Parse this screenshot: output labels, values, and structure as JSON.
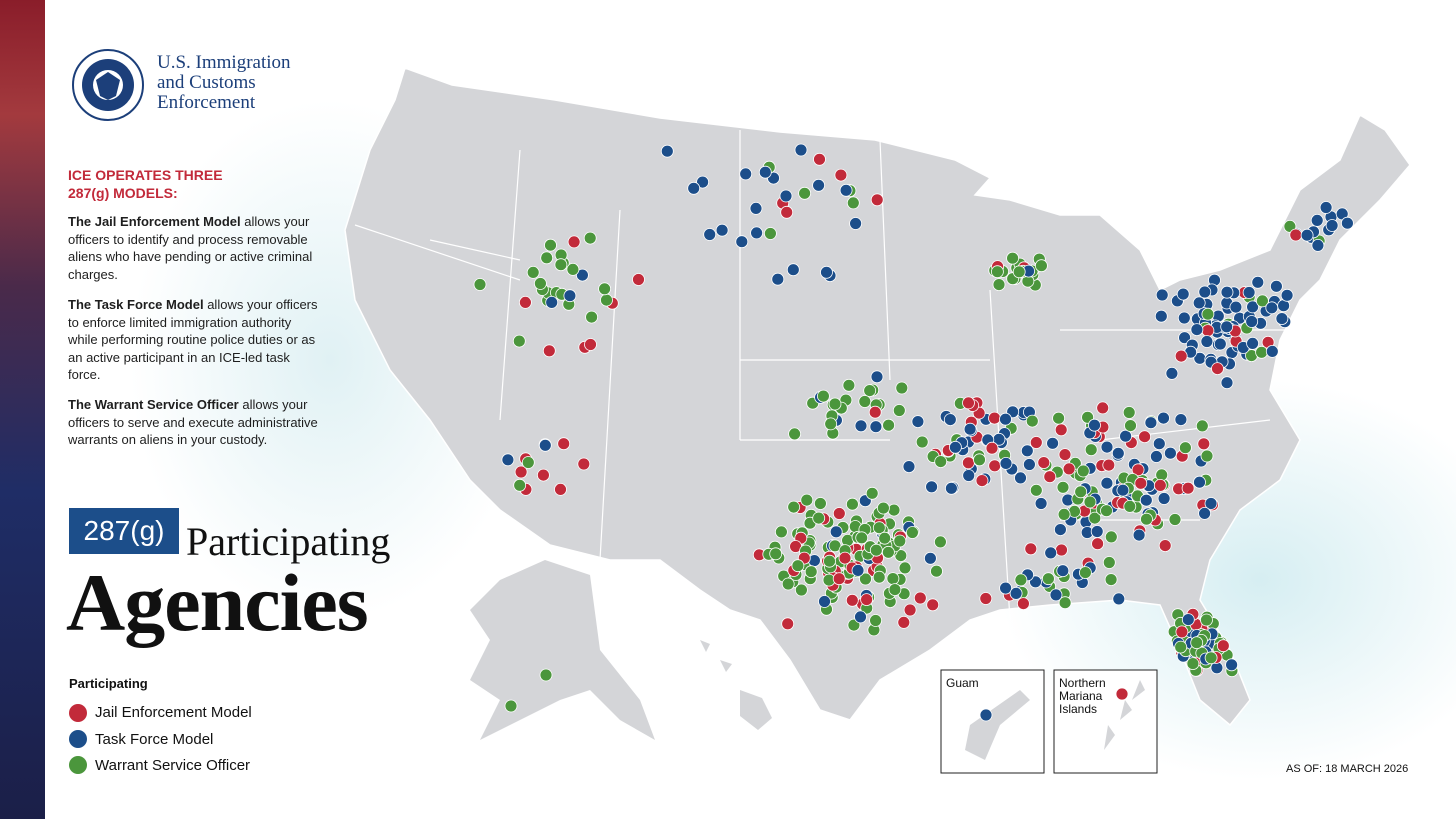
{
  "header": {
    "org_name": [
      "U.S. Immigration",
      "and Customs",
      "Enforcement"
    ]
  },
  "sidebar": {
    "heading": "ICE OPERATES THREE 287(g) MODELS:",
    "paragraphs": [
      {
        "lead": "The Jail Enforcement Model",
        "text": "allows your officers to identify and process removable aliens who have pending or active criminal charges."
      },
      {
        "lead": "The Task Force Model",
        "text": "allows your officers to enforce limited immigration authority while performing routine police duties or as an active participant in an ICE-led task force."
      },
      {
        "lead": "The Warrant Service Officer",
        "text": "allows your officers to serve and execute administrative warrants on aliens in your custody."
      }
    ]
  },
  "title": {
    "badge": "287(g)",
    "line1": "Participating",
    "line2": "Agencies"
  },
  "legend": {
    "title": "Participating",
    "items": [
      {
        "label": "Jail Enforcement Model",
        "color": "#c22a3a"
      },
      {
        "label": "Task Force Model",
        "color": "#1c4e8a"
      },
      {
        "label": "Warrant Service Officer",
        "color": "#4b963c"
      }
    ]
  },
  "insets": [
    {
      "label": "Guam"
    },
    {
      "label": "Northern Mariana Islands"
    }
  ],
  "footer": {
    "as_of": "AS OF: 18 MARCH 2026"
  }
}
